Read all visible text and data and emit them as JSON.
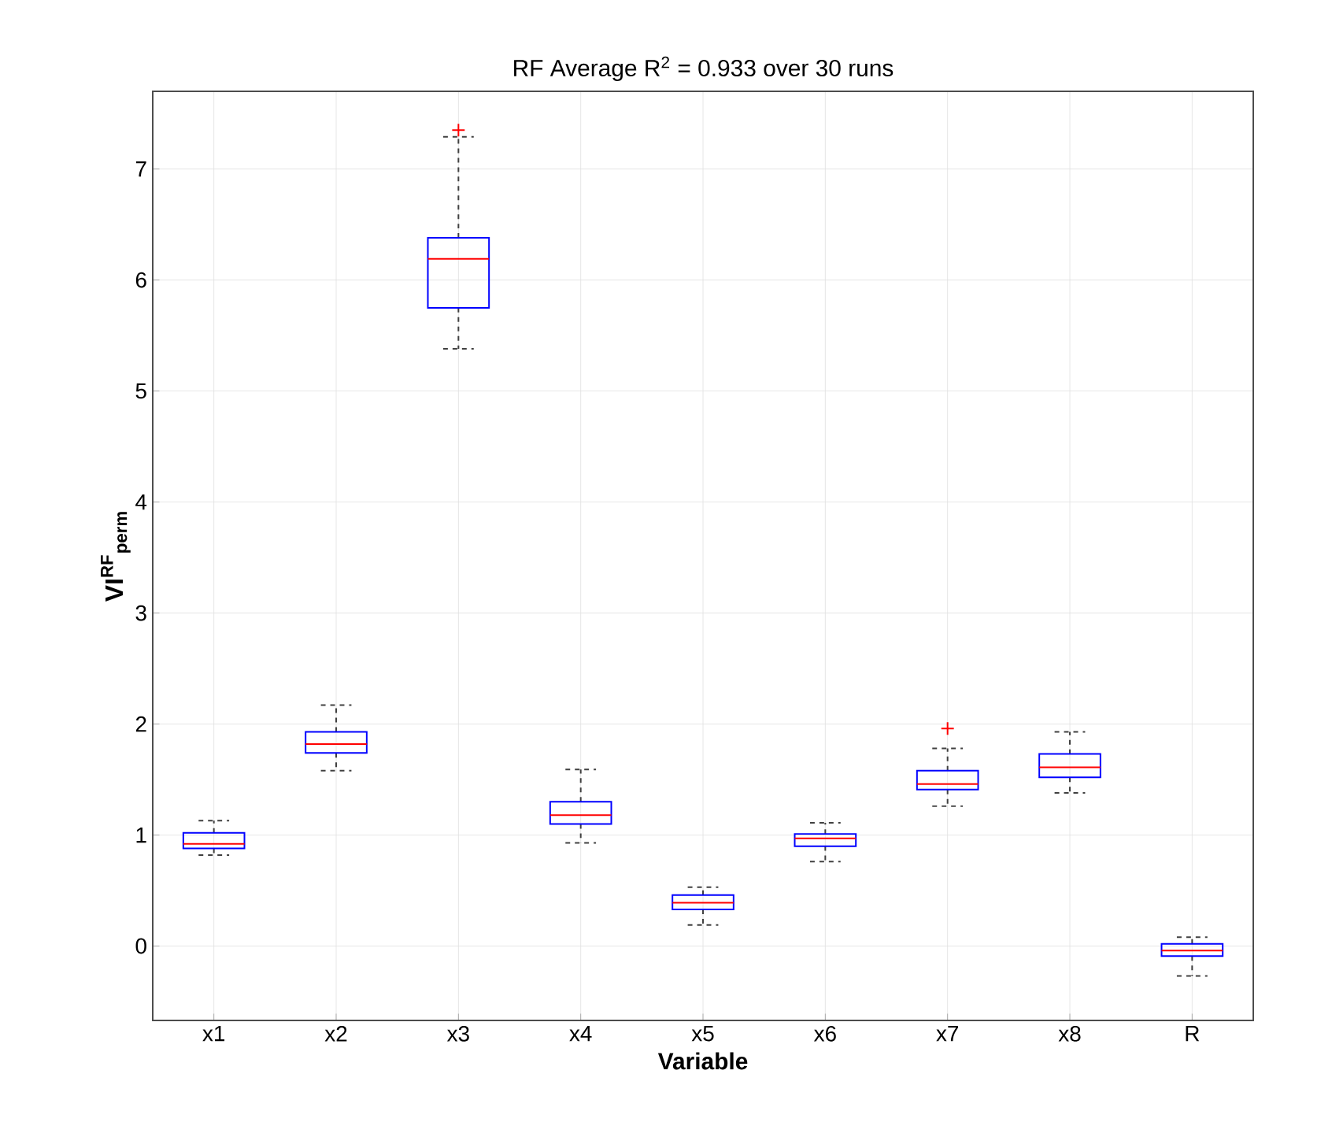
{
  "chart_data": {
    "type": "box",
    "title": "RF Average R$^{2}$ = 0.933 over 30 runs",
    "xlabel": "Variable",
    "ylabel": "VI$^{RF}$$_{perm}$",
    "categories": [
      "x1",
      "x2",
      "x3",
      "x4",
      "x5",
      "x6",
      "x7",
      "x8",
      "R"
    ],
    "series": [
      {
        "color": "#0000ff",
        "boxes": [
          {
            "low": 0.82,
            "q1": 0.88,
            "median": 0.92,
            "q3": 1.02,
            "high": 1.13
          },
          {
            "low": 1.58,
            "q1": 1.74,
            "median": 1.82,
            "q3": 1.93,
            "high": 2.17
          },
          {
            "low": 5.38,
            "q1": 5.75,
            "median": 6.19,
            "q3": 6.38,
            "high": 7.29,
            "outliers": [
              7.35
            ]
          },
          {
            "low": 0.93,
            "q1": 1.1,
            "median": 1.18,
            "q3": 1.3,
            "high": 1.59
          },
          {
            "low": 0.19,
            "q1": 0.33,
            "median": 0.39,
            "q3": 0.46,
            "high": 0.53
          },
          {
            "low": 0.76,
            "q1": 0.9,
            "median": 0.97,
            "q3": 1.01,
            "high": 1.11
          },
          {
            "low": 1.26,
            "q1": 1.41,
            "median": 1.46,
            "q3": 1.58,
            "high": 1.78,
            "outliers": [
              1.96
            ]
          },
          {
            "low": 1.38,
            "q1": 1.52,
            "median": 1.61,
            "q3": 1.73,
            "high": 1.93
          },
          {
            "low": -0.27,
            "q1": -0.09,
            "median": -0.04,
            "q3": 0.02,
            "high": 0.08
          }
        ]
      }
    ],
    "ylim": [
      -0.67,
      7.7
    ],
    "yticks": [
      0,
      1,
      2,
      3,
      4,
      5,
      6,
      7
    ],
    "grid": true
  }
}
